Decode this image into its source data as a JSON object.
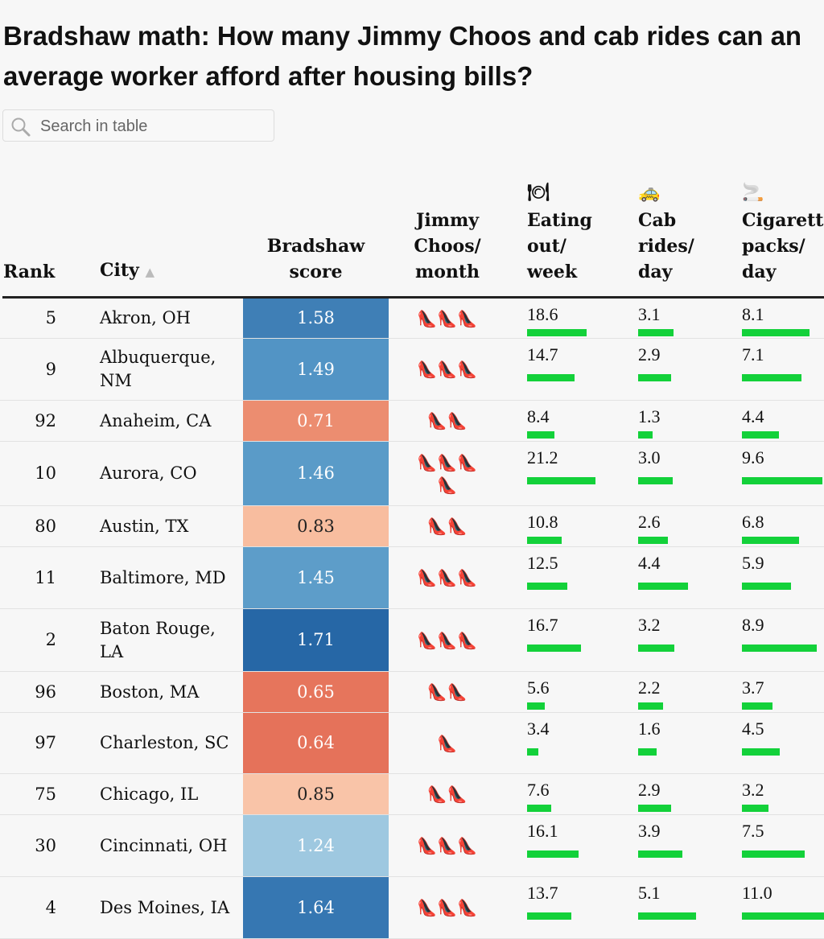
{
  "title": "Bradshaw math: How many Jimmy Choos and cab rides can an average worker afford after housing bills?",
  "search": {
    "placeholder": "Search in table",
    "value": "",
    "icon": "search-icon"
  },
  "headers": {
    "rank": "Rank",
    "city": "City",
    "city_sort": "▲",
    "score": "Bradshaw score",
    "choos": "Jimmy Choos/ month",
    "eating": "Eating out/ week",
    "eating_icon": "🍽",
    "cab": "Cab rides/ day",
    "cab_icon": "🚕",
    "cig": "Cigarette packs/ day",
    "cig_icon": "🚬"
  },
  "colors": {
    "bar": "#13d13a",
    "shoe": "👠"
  },
  "rows": [
    {
      "rank": "5",
      "city": "Akron, OH",
      "score": "1.58",
      "color": "#3f7fb6",
      "dark": false,
      "choos": 3,
      "eating": "18.6",
      "cab": "3.1",
      "cig": "8.1"
    },
    {
      "rank": "9",
      "city": "Albuquerque, NM",
      "score": "1.49",
      "color": "#5294c5",
      "dark": false,
      "choos": 3,
      "eating": "14.7",
      "cab": "2.9",
      "cig": "7.1"
    },
    {
      "rank": "92",
      "city": "Anaheim, CA",
      "score": "0.71",
      "color": "#ec8d70",
      "dark": false,
      "choos": 2,
      "eating": "8.4",
      "cab": "1.3",
      "cig": "4.4"
    },
    {
      "rank": "10",
      "city": "Aurora, CO",
      "score": "1.46",
      "color": "#5a9bc8",
      "dark": false,
      "choos": 4,
      "eating": "21.2",
      "cab": "3.0",
      "cig": "9.6"
    },
    {
      "rank": "80",
      "city": "Austin, TX",
      "score": "0.83",
      "color": "#f8bd9f",
      "dark": true,
      "choos": 2,
      "eating": "10.8",
      "cab": "2.6",
      "cig": "6.8"
    },
    {
      "rank": "11",
      "city": "Baltimore, MD",
      "score": "1.45",
      "color": "#5d9dc9",
      "dark": false,
      "choos": 3,
      "eating": "12.5",
      "cab": "4.4",
      "cig": "5.9"
    },
    {
      "rank": "2",
      "city": "Baton Rouge, LA",
      "score": "1.71",
      "color": "#2667a6",
      "dark": false,
      "choos": 3,
      "eating": "16.7",
      "cab": "3.2",
      "cig": "8.9"
    },
    {
      "rank": "96",
      "city": "Boston, MA",
      "score": "0.65",
      "color": "#e6755c",
      "dark": false,
      "choos": 2,
      "eating": "5.6",
      "cab": "2.2",
      "cig": "3.7"
    },
    {
      "rank": "97",
      "city": "Charleston, SC",
      "score": "0.64",
      "color": "#e5725a",
      "dark": false,
      "choos": 1,
      "eating": "3.4",
      "cab": "1.6",
      "cig": "4.5"
    },
    {
      "rank": "75",
      "city": "Chicago, IL",
      "score": "0.85",
      "color": "#f9c4a8",
      "dark": true,
      "choos": 2,
      "eating": "7.6",
      "cab": "2.9",
      "cig": "3.2"
    },
    {
      "rank": "30",
      "city": "Cincinnati, OH",
      "score": "1.24",
      "color": "#9ec8e0",
      "dark": false,
      "choos": 3,
      "eating": "16.1",
      "cab": "3.9",
      "cig": "7.5"
    },
    {
      "rank": "4",
      "city": "Des Moines, IA",
      "score": "1.64",
      "color": "#3677b2",
      "dark": false,
      "choos": 3,
      "eating": "13.7",
      "cab": "5.1",
      "cig": "11.0"
    }
  ]
}
